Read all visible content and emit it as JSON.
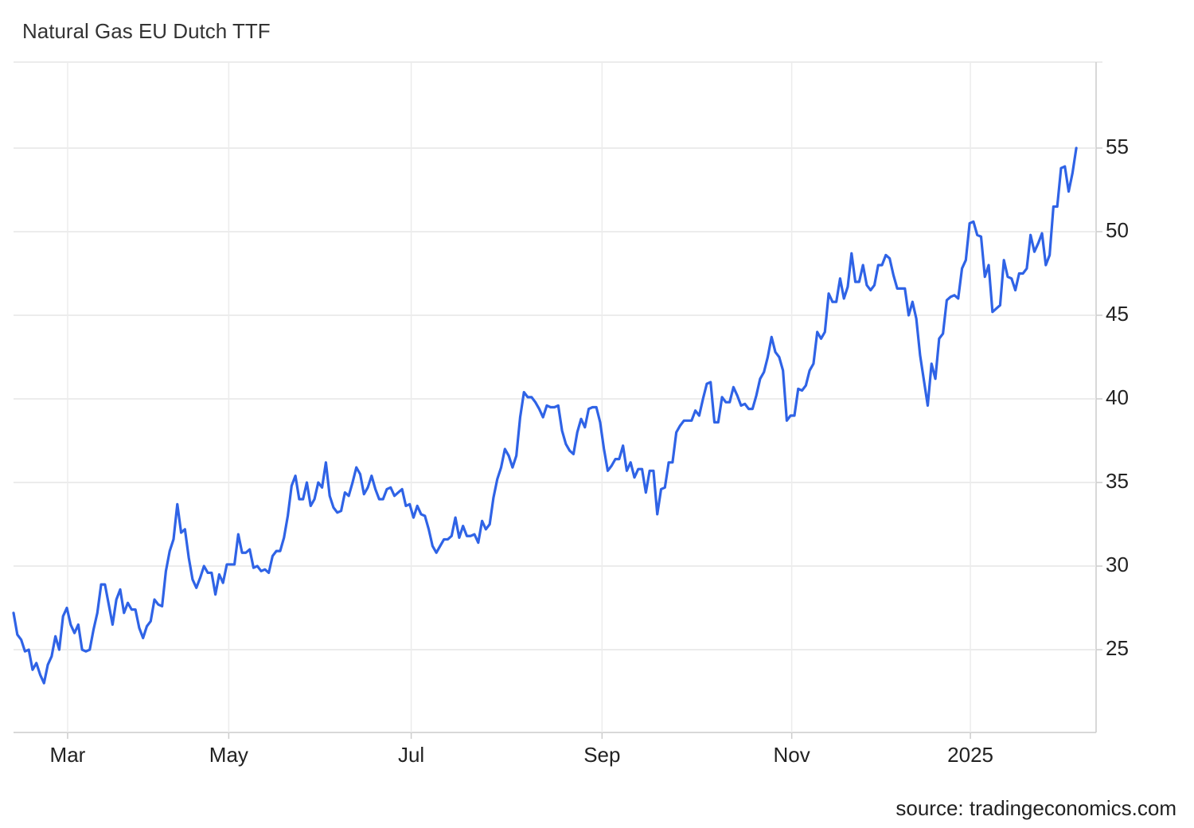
{
  "chart_data": {
    "type": "line",
    "title": "Natural Gas EU Dutch TTF",
    "source": "source: tradingeconomics.com",
    "series": [
      {
        "name": "Natural Gas EU Dutch TTF",
        "color": "#2f63e6",
        "values": [
          27.2,
          25.9,
          25.6,
          24.9,
          25.0,
          23.8,
          24.2,
          23.5,
          23.0,
          24.1,
          24.6,
          25.8,
          25.0,
          27.0,
          27.5,
          26.5,
          26.0,
          26.5,
          25.0,
          24.9,
          25.0,
          26.2,
          27.2,
          28.9,
          28.9,
          27.7,
          26.5,
          28.0,
          28.6,
          27.2,
          27.8,
          27.4,
          27.4,
          26.3,
          25.7,
          26.4,
          26.7,
          28.0,
          27.7,
          27.6,
          29.7,
          30.9,
          31.6,
          33.7,
          32.0,
          32.2,
          30.5,
          29.2,
          28.7,
          29.3,
          30.0,
          29.6,
          29.6,
          28.3,
          29.5,
          29.0,
          30.1,
          30.1,
          30.1,
          31.9,
          30.8,
          30.8,
          31.0,
          29.9,
          30.0,
          29.7,
          29.8,
          29.6,
          30.6,
          30.9,
          30.9,
          31.7,
          33.0,
          34.8,
          35.4,
          34.0,
          34.0,
          35.0,
          33.6,
          34.0,
          35.0,
          34.7,
          36.2,
          34.2,
          33.5,
          33.2,
          33.3,
          34.4,
          34.2,
          35.0,
          35.9,
          35.5,
          34.3,
          34.7,
          35.4,
          34.6,
          34.0,
          34.0,
          34.6,
          34.7,
          34.2,
          34.4,
          34.6,
          33.6,
          33.7,
          32.9,
          33.6,
          33.1,
          33.0,
          32.2,
          31.2,
          30.8,
          31.2,
          31.6,
          31.6,
          31.8,
          32.9,
          31.7,
          32.4,
          31.8,
          31.8,
          31.9,
          31.4,
          32.7,
          32.2,
          32.5,
          34.1,
          35.2,
          35.9,
          37.0,
          36.6,
          35.9,
          36.6,
          38.9,
          40.4,
          40.1,
          40.1,
          39.8,
          39.4,
          38.9,
          39.6,
          39.5,
          39.5,
          39.6,
          38.1,
          37.3,
          36.9,
          36.7,
          38.0,
          38.8,
          38.3,
          39.4,
          39.5,
          39.5,
          38.6,
          37.0,
          35.7,
          36.0,
          36.4,
          36.4,
          37.2,
          35.7,
          36.2,
          35.3,
          35.8,
          35.8,
          34.4,
          35.7,
          35.7,
          33.1,
          34.6,
          34.7,
          36.2,
          36.2,
          38.0,
          38.4,
          38.7,
          38.7,
          38.7,
          39.3,
          39.0,
          40.0,
          40.9,
          41.0,
          38.6,
          38.6,
          40.1,
          39.8,
          39.8,
          40.7,
          40.2,
          39.6,
          39.7,
          39.4,
          39.4,
          40.2,
          41.2,
          41.6,
          42.5,
          43.7,
          42.8,
          42.5,
          41.7,
          38.7,
          39.0,
          39.0,
          40.6,
          40.5,
          40.8,
          41.7,
          42.1,
          44.0,
          43.6,
          44.0,
          46.3,
          45.8,
          45.8,
          47.2,
          46.0,
          46.7,
          48.7,
          47.0,
          47.0,
          48.0,
          46.8,
          46.5,
          46.8,
          48.0,
          48.0,
          48.6,
          48.4,
          47.4,
          46.6,
          46.6,
          46.6,
          45.0,
          45.8,
          44.8,
          42.6,
          41.1,
          39.6,
          42.1,
          41.2,
          43.6,
          43.9,
          45.9,
          46.1,
          46.2,
          46.0,
          47.8,
          48.3,
          50.5,
          50.6,
          49.8,
          49.7,
          47.3,
          48.0,
          45.2,
          45.4,
          45.6,
          48.3,
          47.3,
          47.2,
          46.5,
          47.5,
          47.5,
          47.8,
          49.8,
          48.8,
          49.3,
          49.9,
          48.0,
          48.6,
          51.5,
          51.5,
          53.8,
          53.9,
          52.4,
          53.5,
          55.0
        ]
      }
    ],
    "xlim": [
      0,
      284.2
    ],
    "xticks": [
      {
        "value": 14.2,
        "label": "Mar"
      },
      {
        "value": 56.5,
        "label": "May"
      },
      {
        "value": 104.4,
        "label": "Jul"
      },
      {
        "value": 154.5,
        "label": "Sep"
      },
      {
        "value": 204.3,
        "label": "Nov"
      },
      {
        "value": 251.2,
        "label": "2025"
      }
    ],
    "ylim": [
      20.05,
      60.14
    ],
    "yticks": [
      25,
      30,
      35,
      40,
      45,
      50,
      55
    ],
    "grid": true
  }
}
